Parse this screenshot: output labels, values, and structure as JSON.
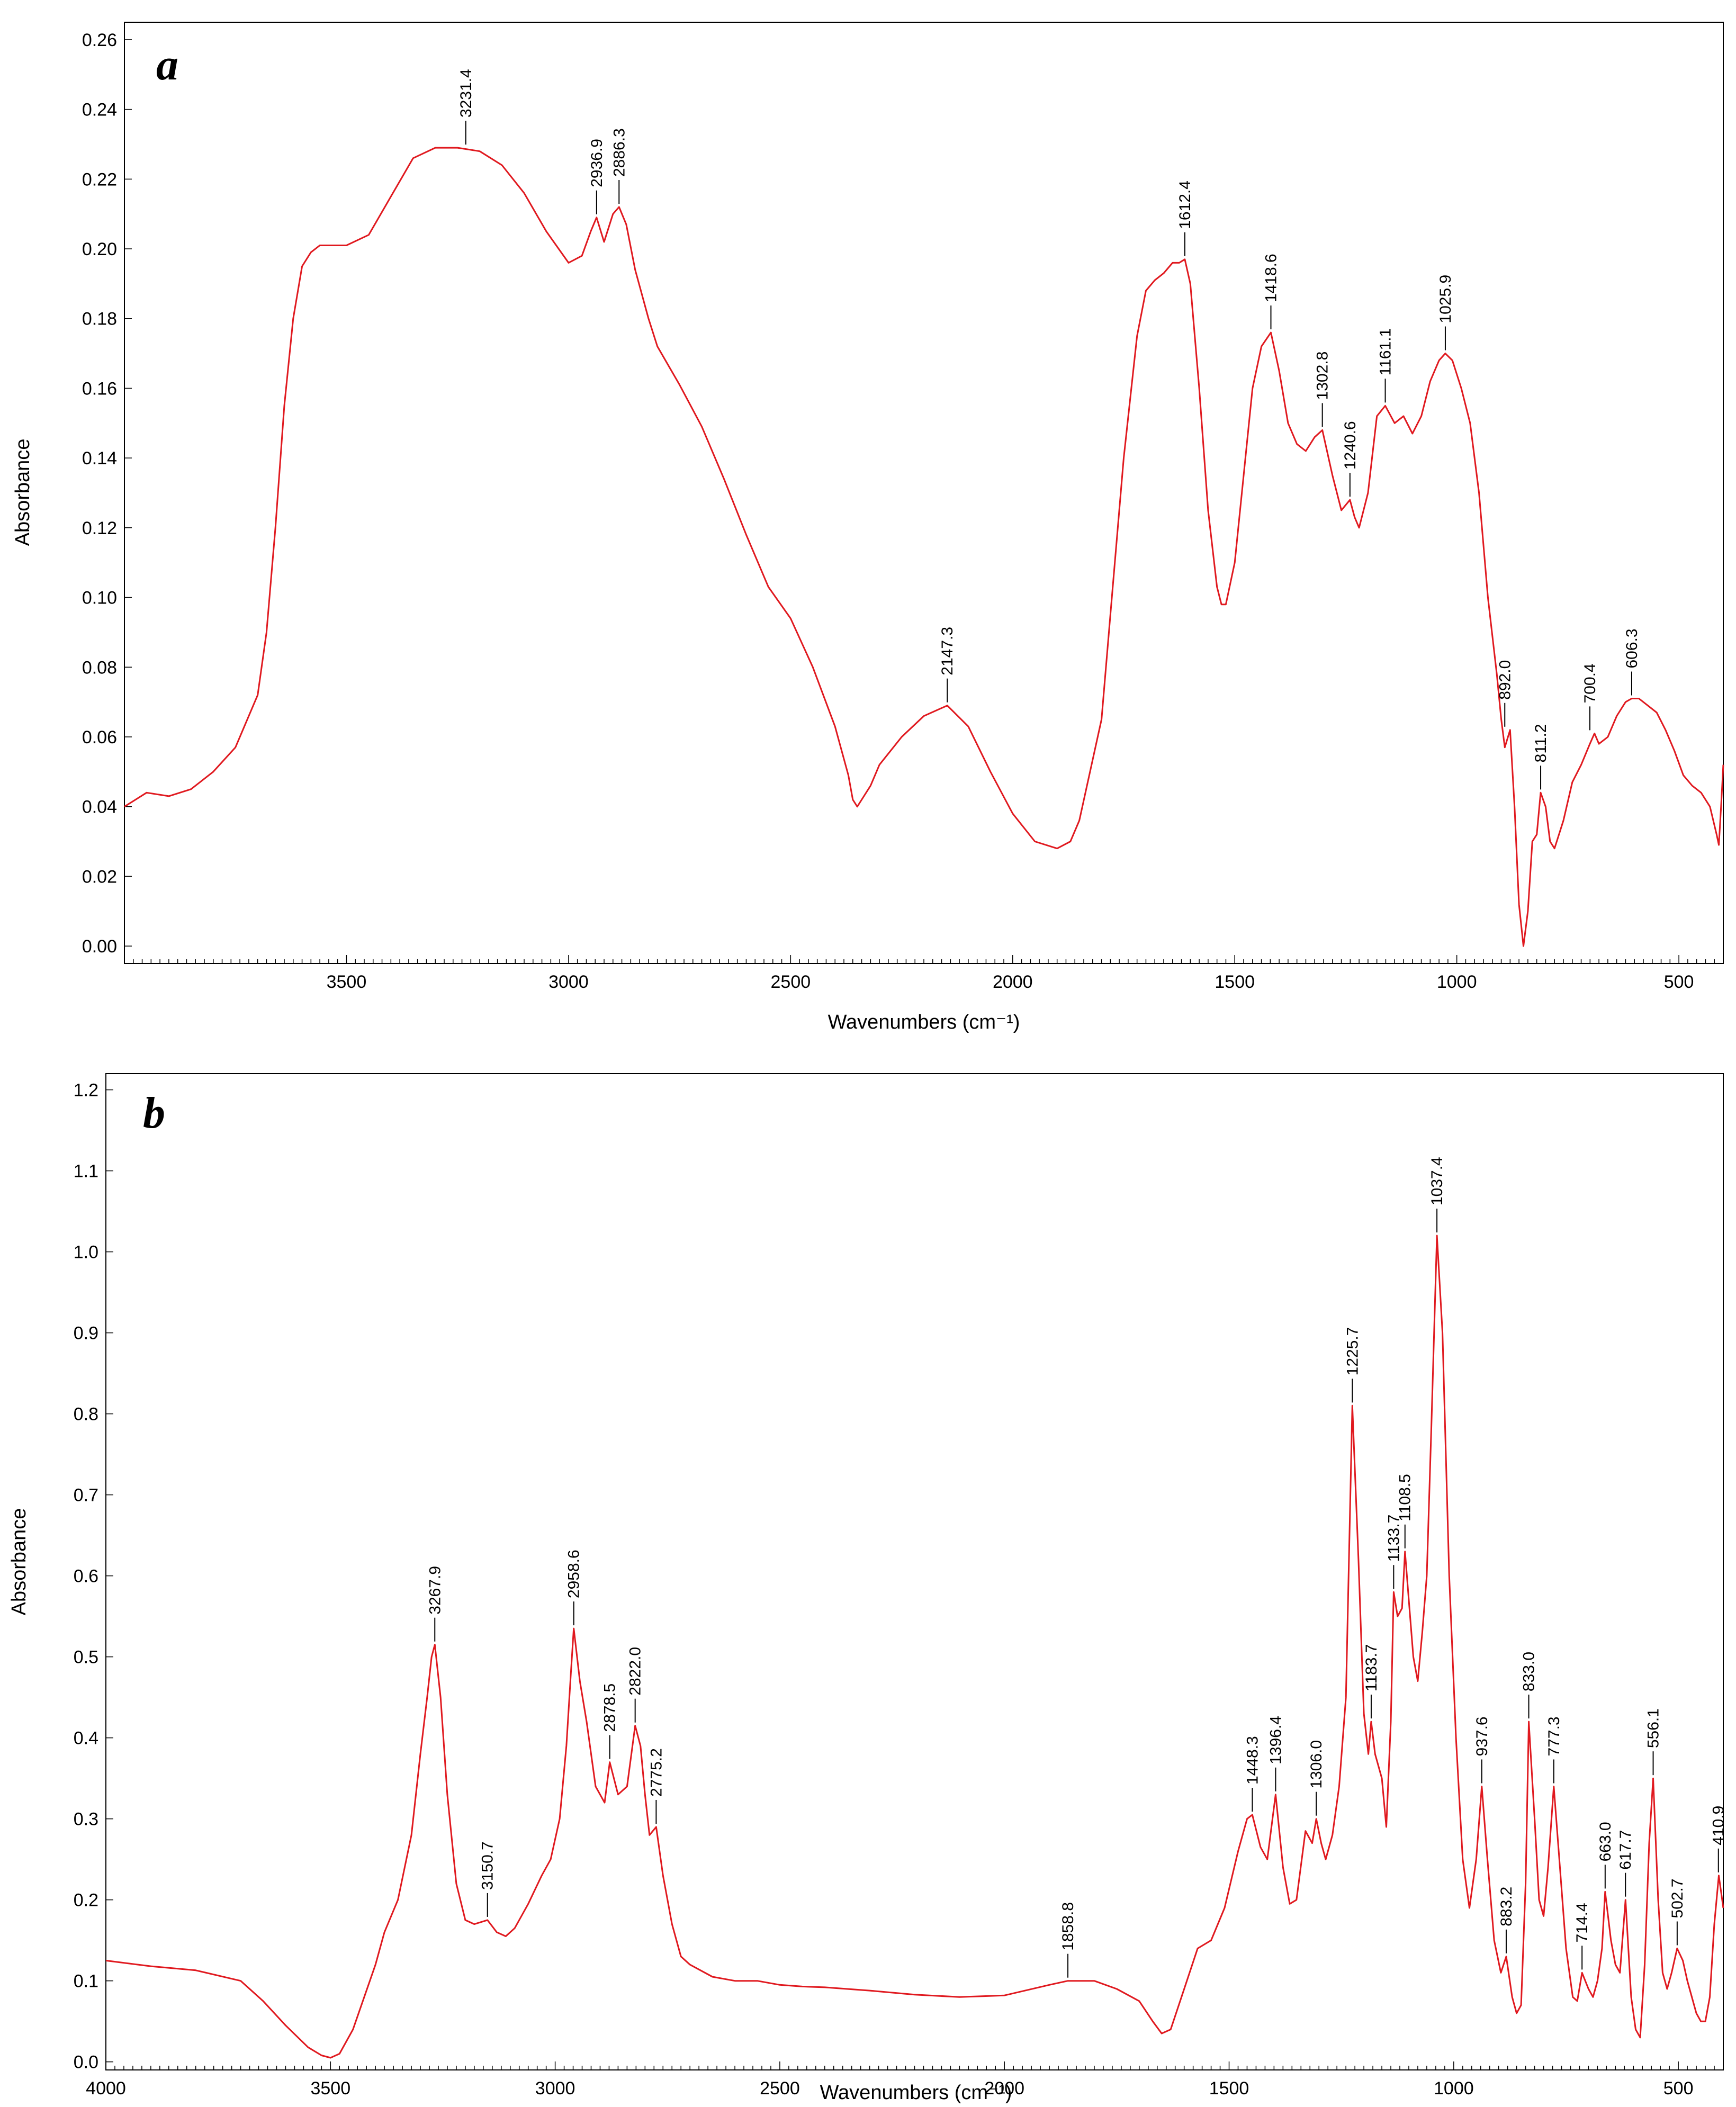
{
  "chart_data": [
    {
      "type": "line",
      "panel_label": "a",
      "xlabel": "Wavenumbers (cm⁻¹)",
      "ylabel": "Absorbance",
      "xlim": [
        4000,
        400
      ],
      "ylim": [
        -0.005,
        0.265
      ],
      "x_reversed": true,
      "xticks": [
        3500,
        3000,
        2500,
        2000,
        1500,
        1000,
        500
      ],
      "yticks": [
        0.0,
        0.02,
        0.04,
        0.06,
        0.08,
        0.1,
        0.12,
        0.14,
        0.16,
        0.18,
        0.2,
        0.22,
        0.24,
        0.26
      ],
      "ytick_decimals": 2,
      "grid": false,
      "color": "#e0191f",
      "series": [
        {
          "x": [
            4000,
            3950,
            3900,
            3850,
            3800,
            3750,
            3700,
            3680,
            3660,
            3640,
            3620,
            3600,
            3580,
            3560,
            3540,
            3500,
            3450,
            3400,
            3350,
            3300,
            3250,
            3200,
            3150,
            3100,
            3050,
            3000,
            2970,
            2950,
            2936.9,
            2920,
            2900,
            2886.3,
            2870,
            2850,
            2820,
            2800,
            2750,
            2700,
            2650,
            2600,
            2550,
            2500,
            2450,
            2400,
            2370,
            2360,
            2350,
            2340,
            2320,
            2300,
            2250,
            2200,
            2147.3,
            2100,
            2050,
            2000,
            1950,
            1900,
            1870,
            1850,
            1800,
            1780,
            1750,
            1720,
            1700,
            1680,
            1660,
            1640,
            1625,
            1612.4,
            1600,
            1580,
            1560,
            1540,
            1530,
            1520,
            1500,
            1480,
            1460,
            1440,
            1418.6,
            1400,
            1380,
            1360,
            1340,
            1320,
            1302.8,
            1280,
            1260,
            1240.6,
            1230,
            1220,
            1200,
            1180,
            1161.1,
            1140,
            1120,
            1100,
            1080,
            1060,
            1040,
            1025.9,
            1010,
            990,
            970,
            950,
            930,
            910,
            900,
            892,
            880,
            870,
            860,
            850,
            840,
            830,
            820,
            811.2,
            800,
            790,
            780,
            760,
            740,
            720,
            700.4,
            690,
            680,
            660,
            640,
            620,
            606.3,
            590,
            570,
            550,
            530,
            510,
            490,
            470,
            450,
            430,
            415,
            410,
            405,
            400
          ],
          "y": [
            0.04,
            0.044,
            0.043,
            0.045,
            0.05,
            0.057,
            0.072,
            0.09,
            0.12,
            0.155,
            0.18,
            0.195,
            0.199,
            0.201,
            0.201,
            0.201,
            0.204,
            0.215,
            0.226,
            0.229,
            0.229,
            0.228,
            0.224,
            0.216,
            0.205,
            0.196,
            0.198,
            0.205,
            0.209,
            0.202,
            0.21,
            0.212,
            0.207,
            0.194,
            0.18,
            0.172,
            0.161,
            0.149,
            0.134,
            0.118,
            0.103,
            0.094,
            0.08,
            0.063,
            0.049,
            0.042,
            0.04,
            0.042,
            0.046,
            0.052,
            0.06,
            0.066,
            0.069,
            0.063,
            0.05,
            0.038,
            0.03,
            0.028,
            0.03,
            0.036,
            0.065,
            0.095,
            0.14,
            0.175,
            0.188,
            0.191,
            0.193,
            0.196,
            0.196,
            0.197,
            0.19,
            0.16,
            0.125,
            0.103,
            0.098,
            0.098,
            0.11,
            0.135,
            0.16,
            0.172,
            0.176,
            0.165,
            0.15,
            0.144,
            0.142,
            0.146,
            0.148,
            0.135,
            0.125,
            0.128,
            0.123,
            0.12,
            0.13,
            0.152,
            0.155,
            0.15,
            0.152,
            0.147,
            0.152,
            0.162,
            0.168,
            0.17,
            0.168,
            0.16,
            0.15,
            0.13,
            0.1,
            0.078,
            0.065,
            0.057,
            0.062,
            0.04,
            0.012,
            0.0,
            0.01,
            0.03,
            0.032,
            0.044,
            0.04,
            0.03,
            0.028,
            0.036,
            0.047,
            0.052,
            0.058,
            0.061,
            0.058,
            0.06,
            0.066,
            0.07,
            0.071,
            0.071,
            0.069,
            0.067,
            0.062,
            0.056,
            0.049,
            0.046,
            0.044,
            0.04,
            0.032,
            0.029,
            0.04,
            0.052
          ]
        }
      ],
      "annotations": [
        {
          "label": "3231.4",
          "x": 3231.4,
          "y": 0.229
        },
        {
          "label": "2936.9",
          "x": 2936.9,
          "y": 0.209
        },
        {
          "label": "2886.3",
          "x": 2886.3,
          "y": 0.212
        },
        {
          "label": "2147.3",
          "x": 2147.3,
          "y": 0.069
        },
        {
          "label": "1612.4",
          "x": 1612.4,
          "y": 0.197
        },
        {
          "label": "1418.6",
          "x": 1418.6,
          "y": 0.176
        },
        {
          "label": "1302.8",
          "x": 1302.8,
          "y": 0.148
        },
        {
          "label": "1240.6",
          "x": 1240.6,
          "y": 0.128
        },
        {
          "label": "1161.1",
          "x": 1161.1,
          "y": 0.155
        },
        {
          "label": "1025.9",
          "x": 1025.9,
          "y": 0.17
        },
        {
          "label": "892.0",
          "x": 892.0,
          "y": 0.062
        },
        {
          "label": "811.2",
          "x": 811.2,
          "y": 0.044
        },
        {
          "label": "700.4",
          "x": 700.4,
          "y": 0.061
        },
        {
          "label": "606.3",
          "x": 606.3,
          "y": 0.071
        }
      ]
    },
    {
      "type": "line",
      "panel_label": "b",
      "xlabel": "Wavenumbers (cm⁻¹)",
      "ylabel": "Absorbance",
      "xlim": [
        4000,
        400
      ],
      "ylim": [
        -0.01,
        1.22
      ],
      "x_reversed": true,
      "xticks": [
        4000,
        3500,
        3000,
        2500,
        2000,
        1500,
        1000,
        500
      ],
      "yticks": [
        0.0,
        0.1,
        0.2,
        0.3,
        0.4,
        0.5,
        0.6,
        0.7,
        0.8,
        0.9,
        1.0,
        1.1,
        1.2
      ],
      "ytick_decimals": 1,
      "grid": false,
      "color": "#e0191f",
      "series": [
        {
          "x": [
            4000,
            3900,
            3800,
            3700,
            3650,
            3600,
            3550,
            3520,
            3500,
            3480,
            3450,
            3400,
            3380,
            3350,
            3320,
            3300,
            3285,
            3275,
            3267.9,
            3255,
            3240,
            3220,
            3200,
            3180,
            3150.7,
            3130,
            3110,
            3090,
            3060,
            3030,
            3010,
            2990,
            2975,
            2965,
            2958.6,
            2945,
            2930,
            2910,
            2890,
            2878.5,
            2860,
            2840,
            2822.0,
            2810,
            2800,
            2790,
            2775.2,
            2760,
            2740,
            2720,
            2700,
            2650,
            2600,
            2550,
            2500,
            2450,
            2400,
            2300,
            2200,
            2100,
            2000,
            1900,
            1858.8,
            1800,
            1750,
            1700,
            1670,
            1650,
            1630,
            1600,
            1570,
            1540,
            1510,
            1480,
            1460,
            1448.3,
            1430,
            1415,
            1396.4,
            1380,
            1365,
            1350,
            1330,
            1315,
            1306.0,
            1295,
            1285,
            1270,
            1255,
            1240,
            1225.7,
            1212,
            1200,
            1190,
            1183.7,
            1175,
            1160,
            1150,
            1140,
            1133.7,
            1125,
            1115,
            1108.5,
            1100,
            1090,
            1080,
            1070,
            1060,
            1050,
            1037.4,
            1025,
            1010,
            995,
            980,
            965,
            950,
            937.6,
            925,
            910,
            895,
            883.2,
            870,
            860,
            850,
            840,
            833.0,
            820,
            810,
            800,
            790,
            777.3,
            765,
            750,
            735,
            725,
            714.4,
            700,
            690,
            680,
            670,
            663.0,
            650,
            640,
            630,
            617.7,
            605,
            595,
            585,
            575,
            565,
            556.1,
            545,
            535,
            525,
            515,
            502.7,
            490,
            480,
            470,
            460,
            450,
            440,
            430,
            420,
            410,
            405,
            400
          ],
          "y": [
            0.125,
            0.118,
            0.113,
            0.1,
            0.075,
            0.045,
            0.018,
            0.008,
            0.005,
            0.01,
            0.04,
            0.12,
            0.16,
            0.2,
            0.28,
            0.38,
            0.45,
            0.5,
            0.515,
            0.45,
            0.33,
            0.22,
            0.175,
            0.17,
            0.175,
            0.16,
            0.155,
            0.165,
            0.195,
            0.23,
            0.25,
            0.3,
            0.39,
            0.48,
            0.535,
            0.47,
            0.42,
            0.34,
            0.32,
            0.37,
            0.33,
            0.34,
            0.415,
            0.39,
            0.33,
            0.28,
            0.29,
            0.23,
            0.17,
            0.13,
            0.12,
            0.105,
            0.1,
            0.1,
            0.095,
            0.093,
            0.092,
            0.088,
            0.083,
            0.08,
            0.082,
            0.095,
            0.1,
            0.1,
            0.09,
            0.075,
            0.05,
            0.035,
            0.04,
            0.09,
            0.14,
            0.15,
            0.19,
            0.26,
            0.3,
            0.305,
            0.265,
            0.25,
            0.33,
            0.24,
            0.195,
            0.2,
            0.285,
            0.27,
            0.3,
            0.27,
            0.25,
            0.28,
            0.34,
            0.45,
            0.81,
            0.62,
            0.43,
            0.38,
            0.42,
            0.38,
            0.35,
            0.29,
            0.42,
            0.58,
            0.55,
            0.56,
            0.63,
            0.57,
            0.5,
            0.47,
            0.53,
            0.6,
            0.78,
            1.02,
            0.9,
            0.6,
            0.4,
            0.25,
            0.19,
            0.25,
            0.34,
            0.25,
            0.15,
            0.11,
            0.13,
            0.08,
            0.06,
            0.07,
            0.22,
            0.42,
            0.3,
            0.2,
            0.18,
            0.24,
            0.34,
            0.25,
            0.14,
            0.08,
            0.075,
            0.11,
            0.09,
            0.08,
            0.1,
            0.14,
            0.21,
            0.15,
            0.12,
            0.11,
            0.2,
            0.08,
            0.04,
            0.03,
            0.12,
            0.27,
            0.35,
            0.2,
            0.11,
            0.09,
            0.11,
            0.14,
            0.125,
            0.1,
            0.08,
            0.06,
            0.05,
            0.05,
            0.08,
            0.17,
            0.23,
            0.21,
            0.19
          ]
        }
      ],
      "annotations": [
        {
          "label": "3267.9",
          "x": 3267.9,
          "y": 0.515
        },
        {
          "label": "3150.7",
          "x": 3150.7,
          "y": 0.175
        },
        {
          "label": "2958.6",
          "x": 2958.6,
          "y": 0.535
        },
        {
          "label": "2878.5",
          "x": 2878.5,
          "y": 0.37
        },
        {
          "label": "2822.0",
          "x": 2822.0,
          "y": 0.415
        },
        {
          "label": "2775.2",
          "x": 2775.2,
          "y": 0.29
        },
        {
          "label": "1858.8",
          "x": 1858.8,
          "y": 0.1
        },
        {
          "label": "1448.3",
          "x": 1448.3,
          "y": 0.305
        },
        {
          "label": "1396.4",
          "x": 1396.4,
          "y": 0.33
        },
        {
          "label": "1306.0",
          "x": 1306.0,
          "y": 0.3
        },
        {
          "label": "1225.7",
          "x": 1225.7,
          "y": 0.81
        },
        {
          "label": "1183.7",
          "x": 1183.7,
          "y": 0.42
        },
        {
          "label": "1133.7",
          "x": 1133.7,
          "y": 0.58
        },
        {
          "label": "1108.5",
          "x": 1108.5,
          "y": 0.63
        },
        {
          "label": "1037.4",
          "x": 1037.4,
          "y": 1.02
        },
        {
          "label": "937.6",
          "x": 937.6,
          "y": 0.34
        },
        {
          "label": "883.2",
          "x": 883.2,
          "y": 0.13
        },
        {
          "label": "833.0",
          "x": 833.0,
          "y": 0.42
        },
        {
          "label": "777.3",
          "x": 777.3,
          "y": 0.34
        },
        {
          "label": "714.4",
          "x": 714.4,
          "y": 0.11
        },
        {
          "label": "663.0",
          "x": 663.0,
          "y": 0.21
        },
        {
          "label": "617.7",
          "x": 617.7,
          "y": 0.2
        },
        {
          "label": "556.1",
          "x": 556.1,
          "y": 0.35
        },
        {
          "label": "502.7",
          "x": 502.7,
          "y": 0.14
        },
        {
          "label": "410.9",
          "x": 410.9,
          "y": 0.23
        }
      ]
    }
  ]
}
